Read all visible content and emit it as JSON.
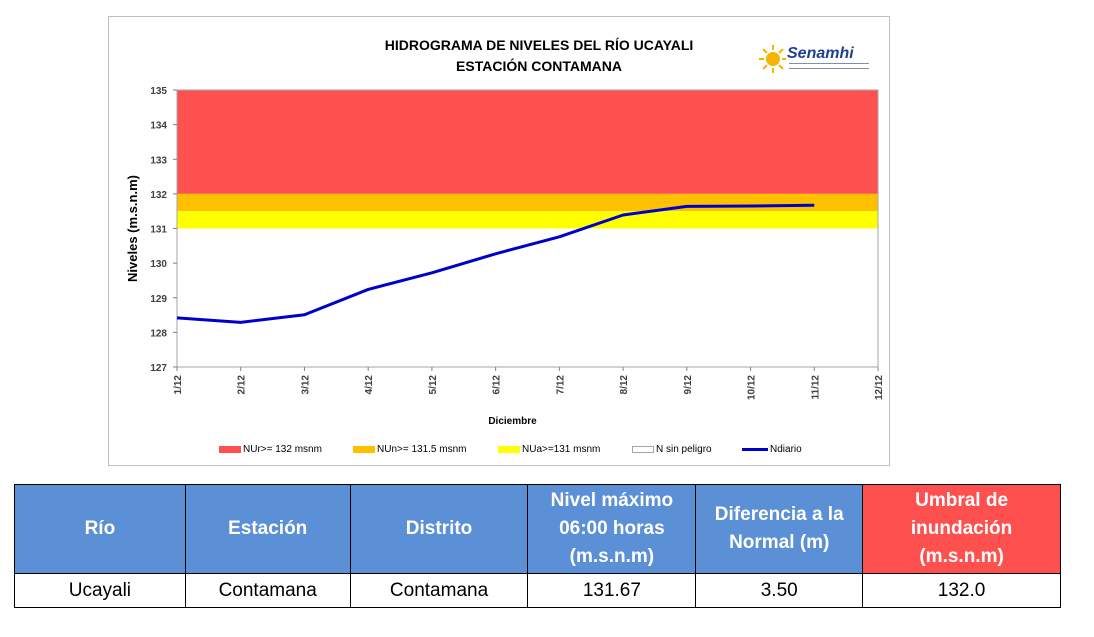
{
  "chart_data": {
    "type": "line",
    "title_line1": "HIDROGRAMA DE NIVELES DEL RÍO UCAYALI",
    "title_line2": "ESTACIÓN CONTAMANA",
    "logo_text": "Senamhi",
    "xlabel": "Diciembre",
    "ylabel": "Niveles (m.s.n.m)",
    "x_ticks": [
      "1/12",
      "2/12",
      "3/12",
      "4/12",
      "5/12",
      "6/12",
      "7/12",
      "8/12",
      "9/12",
      "10/12",
      "11/12",
      "12/12"
    ],
    "ylim": [
      127,
      135
    ],
    "y_ticks": [
      "127",
      "128",
      "129",
      "130",
      "131",
      "132",
      "133",
      "134",
      "135"
    ],
    "bands": [
      {
        "name": "NUr>= 132 msnm",
        "from": 132,
        "to": 135,
        "color": "#ff5050"
      },
      {
        "name": "NUn>= 131.5 msnm",
        "from": 131.5,
        "to": 132,
        "color": "#ffc000"
      },
      {
        "name": "NUa>=131 msnm",
        "from": 131,
        "to": 131.5,
        "color": "#ffff00"
      },
      {
        "name": "N sin peligro",
        "from": 127,
        "to": 131,
        "color": "#ffffff"
      }
    ],
    "series": [
      {
        "name": "Ndiario",
        "color": "#0000cc",
        "values": [
          128.42,
          128.29,
          128.51,
          129.24,
          129.72,
          130.27,
          130.76,
          131.39,
          131.64,
          131.65,
          131.67
        ]
      }
    ],
    "grid": false,
    "legend_position": "bottom"
  },
  "table": {
    "headers": [
      "Río",
      "Estación",
      "Distrito",
      "Nivel máximo 06:00 horas (m.s.n.m)",
      "Diferencia a la Normal (m)",
      "Umbral de inundación (m.s.n.m)"
    ],
    "row": [
      "Ucayali",
      "Contamana",
      "Contamana",
      "131.67",
      "3.50",
      "132.0"
    ]
  }
}
